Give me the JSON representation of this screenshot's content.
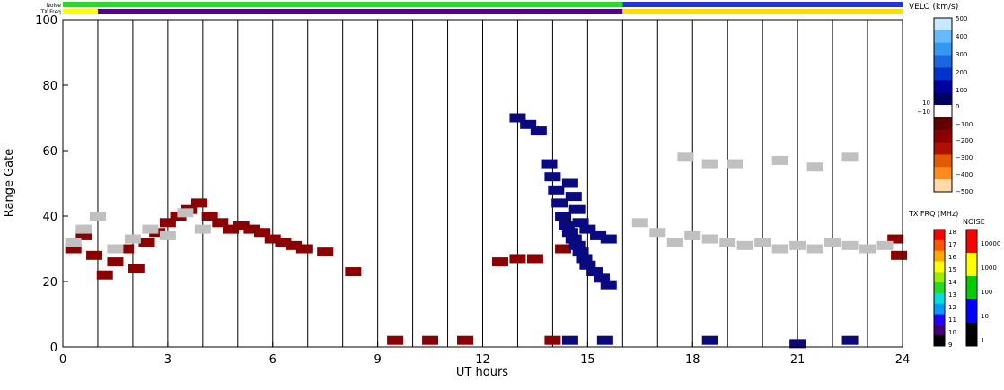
{
  "chart_data": {
    "type": "heatmap",
    "xlabel": "UT hours",
    "ylabel": "Range Gate",
    "xlim": [
      0,
      24
    ],
    "ylim": [
      0,
      100
    ],
    "x_ticks": [
      "0",
      "3",
      "6",
      "9",
      "12",
      "15",
      "18",
      "21",
      "24"
    ],
    "x_tick_values": [
      0,
      3,
      6,
      9,
      12,
      15,
      18,
      21,
      24
    ],
    "y_ticks": [
      "0",
      "20",
      "40",
      "60",
      "80",
      "100"
    ],
    "y_tick_values": [
      0,
      20,
      40,
      60,
      80,
      100
    ],
    "scan_boundaries_hours": [
      1,
      2,
      3,
      4,
      5,
      6,
      7,
      8,
      9,
      10,
      11,
      12,
      13,
      14,
      15,
      16,
      17,
      18,
      19,
      20,
      21,
      22,
      23
    ],
    "status_bars": [
      {
        "label": "Noise",
        "segments": [
          {
            "from": 0,
            "to": 16,
            "color": "#22dd22"
          },
          {
            "from": 16,
            "to": 24,
            "color": "#2233dd"
          }
        ]
      },
      {
        "label": "TX Freq",
        "segments": [
          {
            "from": 0,
            "to": 1,
            "color": "#ffff00"
          },
          {
            "from": 1,
            "to": 16,
            "color": "#550088"
          },
          {
            "from": 16,
            "to": 24,
            "color": "#ffdd00"
          }
        ]
      }
    ],
    "series": [
      {
        "label": "ionospheric scatter",
        "color": "#8b0000",
        "points": [
          [
            0.3,
            30
          ],
          [
            0.6,
            34
          ],
          [
            0.9,
            28
          ],
          [
            1.2,
            22
          ],
          [
            1.5,
            26
          ],
          [
            1.8,
            30
          ],
          [
            2.1,
            24
          ],
          [
            2.4,
            32
          ],
          [
            2.7,
            35
          ],
          [
            3.0,
            38
          ],
          [
            3.3,
            40
          ],
          [
            3.6,
            42
          ],
          [
            3.9,
            44
          ],
          [
            4.2,
            40
          ],
          [
            4.5,
            38
          ],
          [
            4.8,
            36
          ],
          [
            5.1,
            37
          ],
          [
            5.4,
            36
          ],
          [
            5.7,
            35
          ],
          [
            6.0,
            33
          ],
          [
            6.3,
            32
          ],
          [
            6.6,
            31
          ],
          [
            6.9,
            30
          ],
          [
            7.5,
            29
          ],
          [
            8.3,
            23
          ],
          [
            12.5,
            26
          ],
          [
            13.0,
            27
          ],
          [
            13.5,
            27
          ],
          [
            14.3,
            30
          ],
          [
            23.8,
            33
          ],
          [
            23.9,
            28
          ],
          [
            14.0,
            2
          ],
          [
            9.5,
            2
          ],
          [
            10.5,
            2
          ],
          [
            11.5,
            2
          ]
        ]
      },
      {
        "label": "ground scatter",
        "color": "#c0c0c0",
        "points": [
          [
            0.3,
            32
          ],
          [
            0.6,
            36
          ],
          [
            1.0,
            40
          ],
          [
            1.5,
            30
          ],
          [
            2.0,
            33
          ],
          [
            2.5,
            36
          ],
          [
            3.0,
            34
          ],
          [
            3.5,
            41
          ],
          [
            4.0,
            36
          ],
          [
            16.5,
            38
          ],
          [
            17.0,
            35
          ],
          [
            17.5,
            32
          ],
          [
            18.0,
            34
          ],
          [
            18.5,
            33
          ],
          [
            19.0,
            32
          ],
          [
            19.5,
            31
          ],
          [
            20.0,
            32
          ],
          [
            20.5,
            30
          ],
          [
            21.0,
            31
          ],
          [
            21.5,
            30
          ],
          [
            22.0,
            32
          ],
          [
            22.5,
            31
          ],
          [
            23.0,
            30
          ],
          [
            23.5,
            31
          ],
          [
            18.5,
            56
          ],
          [
            20.5,
            57
          ],
          [
            21.5,
            55
          ],
          [
            22.5,
            58
          ],
          [
            17.8,
            58
          ],
          [
            19.2,
            56
          ]
        ]
      },
      {
        "label": "negative velocity scatter",
        "color": "#0a0a80",
        "points": [
          [
            13.9,
            56
          ],
          [
            14.0,
            52
          ],
          [
            14.1,
            48
          ],
          [
            14.2,
            44
          ],
          [
            14.3,
            40
          ],
          [
            14.4,
            37
          ],
          [
            14.5,
            35
          ],
          [
            14.6,
            33
          ],
          [
            14.7,
            31
          ],
          [
            14.8,
            29
          ],
          [
            14.9,
            27
          ],
          [
            15.0,
            25
          ],
          [
            15.2,
            23
          ],
          [
            15.4,
            21
          ],
          [
            15.6,
            19
          ],
          [
            14.5,
            50
          ],
          [
            14.6,
            46
          ],
          [
            14.7,
            42
          ],
          [
            14.8,
            38
          ],
          [
            15.0,
            36
          ],
          [
            15.3,
            34
          ],
          [
            15.6,
            33
          ],
          [
            13.0,
            70
          ],
          [
            13.3,
            68
          ],
          [
            13.6,
            66
          ],
          [
            14.5,
            2
          ],
          [
            15.5,
            2
          ],
          [
            18.5,
            2
          ],
          [
            21.0,
            1
          ],
          [
            22.5,
            2
          ]
        ]
      }
    ],
    "colorbars": [
      {
        "title": "VELO (km/s)",
        "ticks": [
          "500",
          "400",
          "300",
          "200",
          "100",
          "0",
          "10",
          "−10",
          "−100",
          "−200",
          "−300",
          "−400",
          "−500"
        ]
      },
      {
        "title": "TX FRQ (MHz)",
        "ticks": [
          "18",
          "17",
          "16",
          "15",
          "14",
          "13",
          "12",
          "11",
          "10",
          "9"
        ]
      },
      {
        "title": "NOISE",
        "ticks": [
          "10000",
          "1000",
          "100",
          "10",
          "1"
        ]
      }
    ],
    "colors": {
      "velocity_scale": [
        "#ffd9a8",
        "#ff8c1a",
        "#e05a00",
        "#b01000",
        "#8b0000",
        "#600000",
        "#ffffff",
        "#000060",
        "#0000a0",
        "#0033cc",
        "#1a66dd",
        "#3399ee",
        "#66b8ff",
        "#c8e8ff"
      ],
      "txfreq_scale": [
        "#000000",
        "#440077",
        "#2200ff",
        "#0099ff",
        "#00dddd",
        "#22dd22",
        "#99ee00",
        "#ffff00",
        "#ffaa00",
        "#ff5500",
        "#ff0000"
      ],
      "noise_scale": [
        "#000000",
        "#0000ff",
        "#00cc00",
        "#ffff00",
        "#ff0000"
      ]
    }
  },
  "labels": {
    "noise_bar": "Noise",
    "txfreq_bar": "TX Freq"
  }
}
